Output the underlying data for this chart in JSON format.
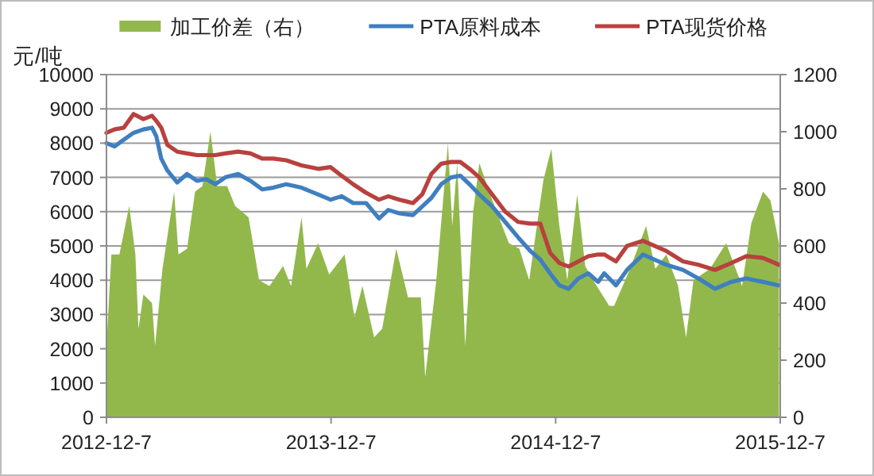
{
  "chart_data": {
    "type": "line",
    "ylabel": "元/吨",
    "legend": "top",
    "grid": "y",
    "xlim": [
      "2012-12-07",
      "2015-12-07"
    ],
    "xticks": [
      {
        "value": "2012-12-07",
        "label": "2012-12-7"
      },
      {
        "value": "2013-12-07",
        "label": "2013-12-7"
      },
      {
        "value": "2014-12-07",
        "label": "2014-12-7"
      },
      {
        "value": "2015-12-07",
        "label": "2015-12-7"
      }
    ],
    "ylim": [
      0,
      10000
    ],
    "yticks": [
      0,
      1000,
      2000,
      3000,
      4000,
      5000,
      6000,
      7000,
      8000,
      9000,
      10000
    ],
    "y2lim": [
      0,
      1200
    ],
    "y2ticks": [
      0,
      200,
      400,
      600,
      800,
      1000,
      1200
    ],
    "series": [
      {
        "name": "加工价差（右）",
        "type": "area",
        "axis": "y2",
        "color": "#92b84c",
        "x": [
          "2012-12-07",
          "2012-12-15",
          "2012-12-28",
          "2013-01-13",
          "2013-01-23",
          "2013-01-28",
          "2013-02-05",
          "2013-02-19",
          "2013-02-24",
          "2013-03-08",
          "2013-03-27",
          "2013-04-03",
          "2013-04-17",
          "2013-04-30",
          "2013-05-12",
          "2013-05-25",
          "2013-06-05",
          "2013-06-21",
          "2013-07-04",
          "2013-07-26",
          "2013-08-12",
          "2013-08-29",
          "2013-09-20",
          "2013-10-03",
          "2013-10-20",
          "2013-10-28",
          "2013-11-16",
          "2013-12-04",
          "2013-12-29",
          "2014-01-14",
          "2014-01-27",
          "2014-02-15",
          "2014-02-28",
          "2014-03-23",
          "2014-04-11",
          "2014-05-02",
          "2014-05-09",
          "2014-05-27",
          "2014-06-15",
          "2014-06-22",
          "2014-06-30",
          "2014-07-13",
          "2014-07-26",
          "2014-08-05",
          "2014-08-26",
          "2014-09-22",
          "2014-10-09",
          "2014-10-25",
          "2014-11-17",
          "2014-11-30",
          "2014-12-13",
          "2014-12-26",
          "2015-01-11",
          "2015-01-24",
          "2015-02-06",
          "2015-03-04",
          "2015-03-12",
          "2015-04-07",
          "2015-05-03",
          "2015-05-18",
          "2015-06-05",
          "2015-06-24",
          "2015-07-07",
          "2015-07-19",
          "2015-08-15",
          "2015-09-10",
          "2015-10-06",
          "2015-10-21",
          "2015-11-09",
          "2015-11-21",
          "2015-12-05"
        ],
        "values": [
          250,
          570,
          570,
          740,
          570,
          310,
          430,
          400,
          250,
          520,
          790,
          570,
          590,
          790,
          810,
          1000,
          810,
          810,
          740,
          700,
          480,
          460,
          530,
          460,
          700,
          520,
          610,
          500,
          570,
          350,
          460,
          280,
          310,
          590,
          420,
          420,
          140,
          480,
          960,
          670,
          890,
          250,
          720,
          890,
          760,
          610,
          590,
          480,
          830,
          940,
          670,
          480,
          780,
          530,
          480,
          390,
          390,
          520,
          670,
          520,
          570,
          460,
          280,
          480,
          520,
          610,
          460,
          680,
          790,
          760,
          610
        ]
      },
      {
        "name": "PTA原料成本",
        "type": "line",
        "color": "#3f7fc0",
        "x": [
          "2012-12-07",
          "2012-12-20",
          "2013-01-04",
          "2013-01-20",
          "2013-02-05",
          "2013-02-19",
          "2013-02-26",
          "2013-03-06",
          "2013-03-16",
          "2013-04-01",
          "2013-04-17",
          "2013-05-03",
          "2013-05-18",
          "2013-06-02",
          "2013-06-18",
          "2013-07-09",
          "2013-07-29",
          "2013-08-17",
          "2013-09-04",
          "2013-09-25",
          "2013-10-20",
          "2013-11-16",
          "2013-12-06",
          "2013-12-24",
          "2014-01-12",
          "2014-02-02",
          "2014-02-23",
          "2014-03-10",
          "2014-03-28",
          "2014-04-19",
          "2014-05-04",
          "2014-05-19",
          "2014-06-04",
          "2014-06-20",
          "2014-07-05",
          "2014-07-20",
          "2014-08-05",
          "2014-08-26",
          "2014-09-16",
          "2014-10-07",
          "2014-10-27",
          "2014-11-12",
          "2014-11-28",
          "2014-12-13",
          "2014-12-28",
          "2015-01-13",
          "2015-01-29",
          "2015-02-14",
          "2015-02-24",
          "2015-03-15",
          "2015-04-02",
          "2015-04-28",
          "2015-06-05",
          "2015-07-02",
          "2015-07-27",
          "2015-08-23",
          "2015-09-18",
          "2015-10-13",
          "2015-11-09",
          "2015-12-05"
        ],
        "values": [
          8000,
          7900,
          8100,
          8300,
          8400,
          8450,
          8200,
          7550,
          7200,
          6850,
          7100,
          6900,
          6950,
          6800,
          7000,
          7100,
          6900,
          6650,
          6700,
          6800,
          6700,
          6500,
          6350,
          6450,
          6250,
          6250,
          5800,
          6050,
          5950,
          5900,
          6150,
          6400,
          6800,
          7000,
          7050,
          6800,
          6500,
          6150,
          5700,
          5250,
          4850,
          4600,
          4200,
          3850,
          3750,
          4050,
          4200,
          3950,
          4200,
          3850,
          4300,
          4750,
          4450,
          4300,
          4050,
          3750,
          3950,
          4050,
          3950,
          3850
        ]
      },
      {
        "name": "PTA现货价格",
        "type": "line",
        "color": "#b8413e",
        "x": [
          "2012-12-07",
          "2012-12-20",
          "2013-01-04",
          "2013-01-20",
          "2013-02-05",
          "2013-02-19",
          "2013-02-26",
          "2013-03-06",
          "2013-03-16",
          "2013-04-01",
          "2013-04-17",
          "2013-05-03",
          "2013-05-18",
          "2013-06-02",
          "2013-06-18",
          "2013-07-09",
          "2013-07-29",
          "2013-08-17",
          "2013-09-04",
          "2013-09-25",
          "2013-10-20",
          "2013-11-16",
          "2013-12-06",
          "2013-12-24",
          "2014-01-12",
          "2014-02-02",
          "2014-02-23",
          "2014-03-10",
          "2014-03-28",
          "2014-04-19",
          "2014-05-04",
          "2014-05-19",
          "2014-06-04",
          "2014-06-20",
          "2014-07-05",
          "2014-07-20",
          "2014-08-05",
          "2014-08-26",
          "2014-09-16",
          "2014-10-07",
          "2014-10-27",
          "2014-11-12",
          "2014-11-28",
          "2014-12-13",
          "2014-12-28",
          "2015-01-13",
          "2015-01-29",
          "2015-02-14",
          "2015-02-24",
          "2015-03-15",
          "2015-04-02",
          "2015-04-28",
          "2015-06-05",
          "2015-07-02",
          "2015-07-27",
          "2015-08-23",
          "2015-09-18",
          "2015-10-13",
          "2015-11-09",
          "2015-12-05"
        ],
        "values": [
          8300,
          8400,
          8450,
          8850,
          8700,
          8800,
          8650,
          8450,
          7950,
          7750,
          7700,
          7650,
          7650,
          7650,
          7700,
          7750,
          7700,
          7550,
          7550,
          7500,
          7350,
          7250,
          7300,
          7050,
          6800,
          6550,
          6350,
          6450,
          6350,
          6250,
          6500,
          7100,
          7400,
          7450,
          7450,
          7250,
          7000,
          6500,
          6000,
          5700,
          5650,
          5650,
          4800,
          4500,
          4400,
          4550,
          4700,
          4750,
          4750,
          4550,
          5000,
          5150,
          4850,
          4550,
          4450,
          4300,
          4500,
          4700,
          4650,
          4450
        ]
      }
    ]
  }
}
